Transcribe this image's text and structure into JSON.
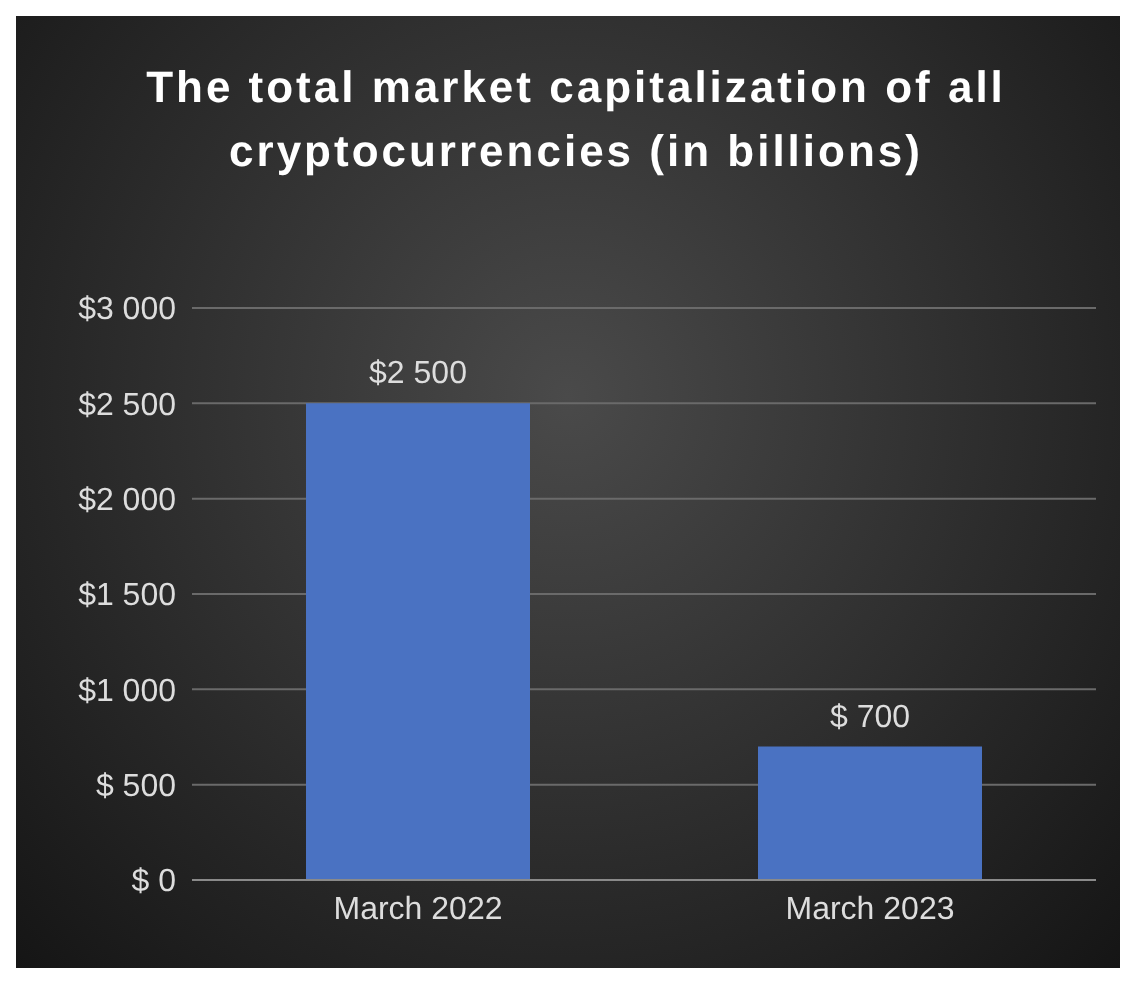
{
  "chart_data": {
    "type": "bar",
    "title": "The total market capitalization of all cryptocurrencies (in billions)",
    "categories": [
      "March 2022",
      "March 2023"
    ],
    "values": [
      2500,
      700
    ],
    "color": "#4a72c2",
    "value_labels": [
      "$2 500",
      "$ 700"
    ],
    "ylim": [
      0,
      3000
    ],
    "yticks": [
      {
        "value": 0,
        "label": "$ 0"
      },
      {
        "value": 500,
        "label": "$ 500"
      },
      {
        "value": 1000,
        "label": "$1 000"
      },
      {
        "value": 1500,
        "label": "$1 500"
      },
      {
        "value": 2000,
        "label": "$2 000"
      },
      {
        "value": 2500,
        "label": "$2 500"
      },
      {
        "value": 3000,
        "label": "$3 000"
      }
    ],
    "grid": "y",
    "legend": false
  }
}
